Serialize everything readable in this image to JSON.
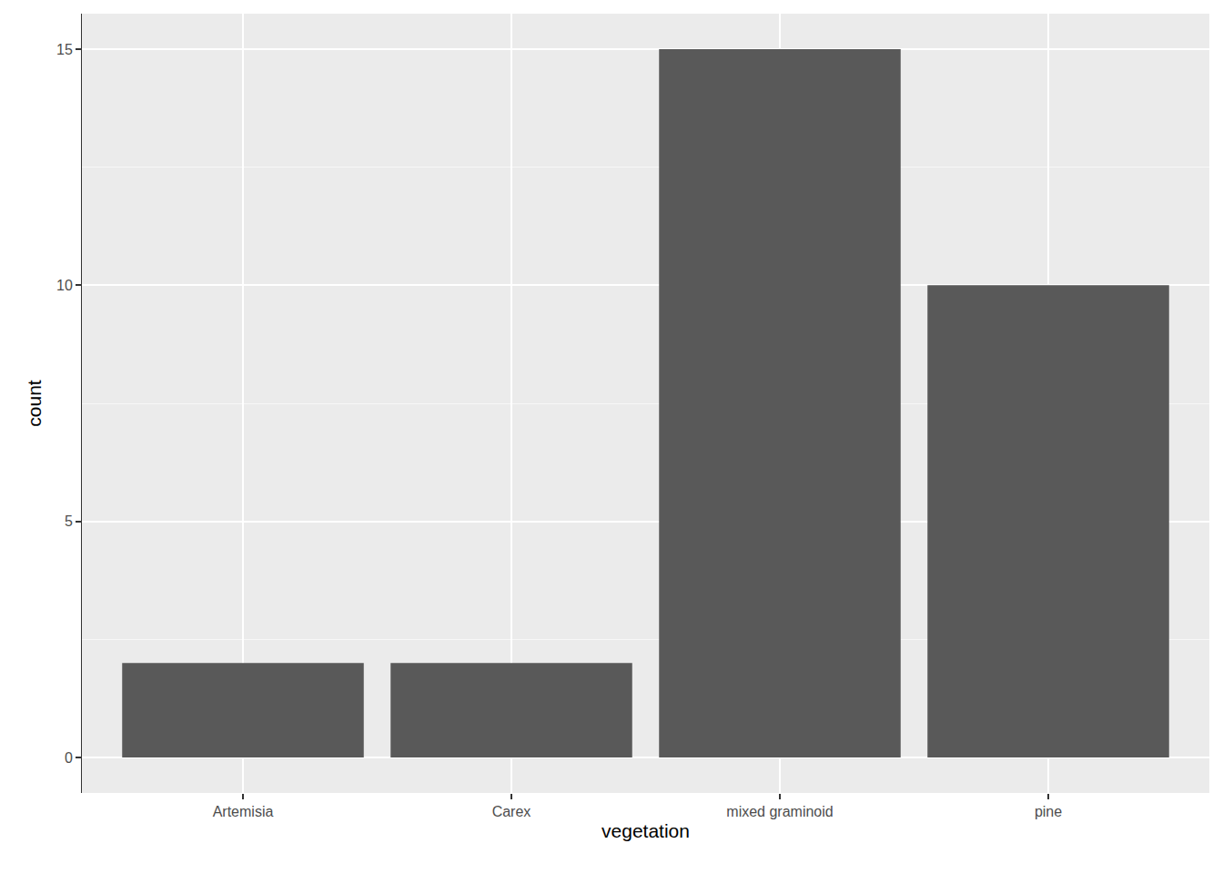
{
  "chart_data": {
    "type": "bar",
    "categories": [
      "Artemisia",
      "Carex",
      "mixed graminoid",
      "pine"
    ],
    "values": [
      2,
      2,
      15,
      10
    ],
    "color": "#595959",
    "x_label": "vegetation",
    "y_label": "count",
    "ylim": [
      -0.75,
      15.75
    ],
    "yticks": [
      0,
      5,
      10,
      15
    ],
    "grid": true
  }
}
